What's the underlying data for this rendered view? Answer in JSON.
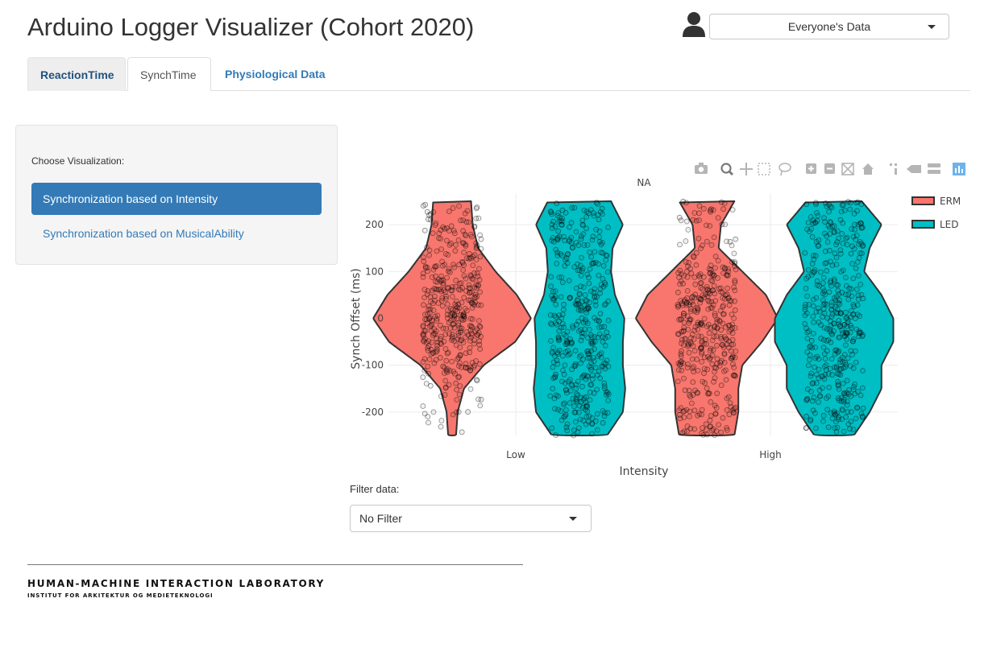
{
  "header": {
    "title": "Arduino Logger Visualizer (Cohort 2020)",
    "user_select_value": "Everyone's Data",
    "user_icon": "user-icon"
  },
  "tabs": [
    {
      "label": "ReactionTime",
      "active": false
    },
    {
      "label": "SynchTime",
      "active": true
    },
    {
      "label": "Physiological Data",
      "active": false
    }
  ],
  "sidebar": {
    "label": "Choose Visualization:",
    "options": [
      {
        "label": "Synchronization based on Intensity",
        "selected": true
      },
      {
        "label": "Synchronization based on MusicalAbility",
        "selected": false
      }
    ]
  },
  "toolbar": {
    "icons": [
      "camera-icon",
      "zoom-icon",
      "pan-icon",
      "box-select-icon",
      "lasso-icon",
      "zoom-in-icon",
      "zoom-out-icon",
      "autoscale-icon",
      "reset-axes-icon",
      "spike-lines-icon",
      "hover-closest-icon",
      "hover-compare-icon",
      "plotly-logo-icon"
    ]
  },
  "chart_data": {
    "type": "violin",
    "title": "NA",
    "xlabel": "Intensity",
    "ylabel": "Synch Offset (ms)",
    "categories": [
      "Low",
      "High"
    ],
    "ylim": [
      -250,
      250
    ],
    "yticks": [
      -200,
      -100,
      0,
      100,
      200
    ],
    "grid": true,
    "legend_position": "top-right",
    "show_points": true,
    "series": [
      {
        "name": "ERM",
        "color": "#F8766D",
        "profiles": [
          {
            "category": "Low",
            "y": [
              -250,
              -200,
              -150,
              -100,
              -50,
              0,
              50,
              100,
              150,
              200,
              250
            ],
            "w": [
              0.05,
              0.07,
              0.15,
              0.4,
              0.8,
              1.0,
              0.82,
              0.55,
              0.33,
              0.26,
              0.24
            ]
          },
          {
            "category": "High",
            "y": [
              -250,
              -200,
              -150,
              -100,
              -50,
              0,
              50,
              100,
              150,
              200,
              250
            ],
            "w": [
              0.35,
              0.4,
              0.4,
              0.45,
              0.7,
              0.9,
              0.75,
              0.45,
              0.15,
              0.18,
              0.35
            ]
          }
        ]
      },
      {
        "name": "LED",
        "color": "#00BFC4",
        "profiles": [
          {
            "category": "Low",
            "y": [
              -250,
              -200,
              -150,
              -100,
              -50,
              0,
              50,
              100,
              150,
              200,
              250
            ],
            "w": [
              0.35,
              0.55,
              0.58,
              0.55,
              0.55,
              0.57,
              0.45,
              0.4,
              0.42,
              0.55,
              0.4
            ]
          },
          {
            "category": "High",
            "y": [
              -250,
              -200,
              -150,
              -100,
              -50,
              0,
              50,
              100,
              150,
              200,
              250
            ],
            "w": [
              0.25,
              0.45,
              0.6,
              0.6,
              0.75,
              0.75,
              0.6,
              0.38,
              0.45,
              0.6,
              0.35
            ]
          }
        ]
      }
    ]
  },
  "filter": {
    "label": "Filter data:",
    "value": "No Filter"
  },
  "footer": {
    "title": "HUMAN-MACHINE INTERACTION LABORATORY",
    "subtitle": "INSTITUT FOR ARKITEKTUR OG MEDIETEKNOLOGI"
  }
}
